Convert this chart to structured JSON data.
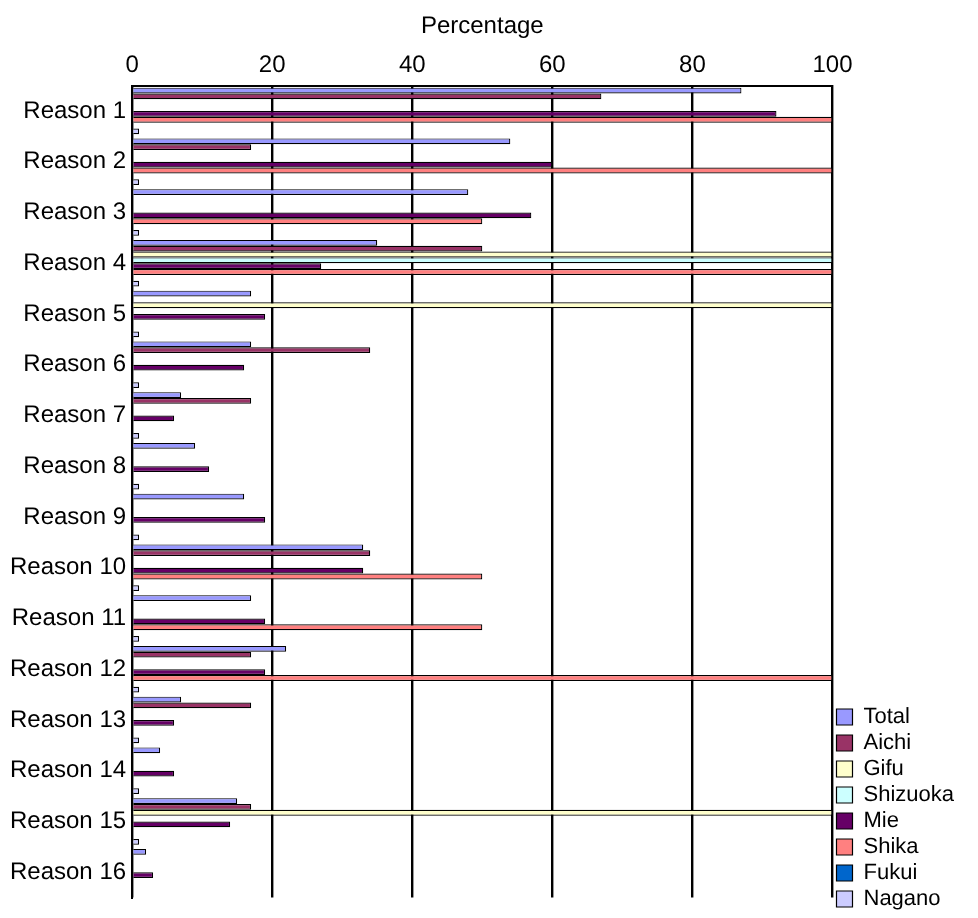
{
  "chart_data": {
    "type": "bar",
    "orientation": "horizontal",
    "xlabel": "Percentage",
    "categories": [
      "Reason 1",
      "Reason 2",
      "Reason 3",
      "Reason 4",
      "Reason 5",
      "Reason 6",
      "Reason 7",
      "Reason 8",
      "Reason 9",
      "Reason 10",
      "Reason 11",
      "Reason 12",
      "Reason 13",
      "Reason 14",
      "Reason 15",
      "Reason 16"
    ],
    "series": [
      {
        "name": "Total",
        "color": "#9999ff",
        "values": [
          87,
          54,
          48,
          35,
          17,
          17,
          7,
          9,
          16,
          33,
          17,
          22,
          7,
          4,
          15,
          2
        ]
      },
      {
        "name": "Aichi",
        "color": "#993366",
        "values": [
          67,
          17,
          0,
          50,
          0,
          34,
          17,
          0,
          0,
          34,
          0,
          17,
          17,
          0,
          17,
          0
        ]
      },
      {
        "name": "Gifu",
        "color": "#ffffcc",
        "values": [
          0,
          0,
          0,
          100,
          100,
          0,
          0,
          0,
          0,
          0,
          0,
          0,
          0,
          0,
          100,
          0
        ]
      },
      {
        "name": "Shizuoka",
        "color": "#ccffff",
        "values": [
          0,
          0,
          0,
          100,
          0,
          0,
          0,
          0,
          0,
          0,
          0,
          0,
          0,
          0,
          0,
          0
        ]
      },
      {
        "name": "Mie",
        "color": "#660066",
        "values": [
          92,
          60,
          57,
          27,
          19,
          16,
          6,
          11,
          19,
          33,
          19,
          19,
          6,
          6,
          14,
          3
        ]
      },
      {
        "name": "Shika",
        "color": "#ff8080",
        "values": [
          100,
          100,
          50,
          100,
          0,
          0,
          0,
          0,
          0,
          50,
          50,
          100,
          0,
          0,
          0,
          0
        ]
      },
      {
        "name": "Fukui",
        "color": "#0066cc",
        "values": [
          0,
          0,
          0,
          0,
          0,
          0,
          0,
          0,
          0,
          0,
          0,
          0,
          0,
          0,
          0,
          0
        ]
      },
      {
        "name": "Nagano",
        "color": "#ccccff",
        "values": [
          1,
          1,
          1,
          1,
          1,
          1,
          1,
          1,
          1,
          1,
          1,
          1,
          1,
          1,
          1,
          0
        ]
      }
    ],
    "xlim": [
      0,
      100
    ],
    "xticks": [
      0,
      20,
      40,
      60,
      80,
      100
    ],
    "grid": "x",
    "legend": "bottom right"
  }
}
